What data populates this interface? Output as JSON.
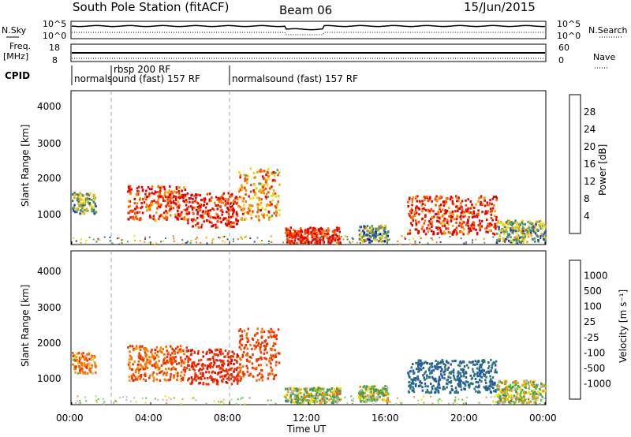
{
  "header": {
    "station": "South Pole Station (fitACF)",
    "beam": "Beam 06",
    "date": "15/Jun/2015"
  },
  "top_panels": {
    "nsky_label": "N.Sky",
    "nsky_ticks": [
      "10^5",
      "10^0"
    ],
    "nsearch_label": "N.Search",
    "nsearch_ticks": [
      "10^5",
      "10^0"
    ],
    "freq_label": "Freq.",
    "freq_unit": "[MHz]",
    "freq_ticks": [
      "18",
      "8"
    ],
    "nave_label": "Nave",
    "nave_ticks": [
      "60",
      "0"
    ],
    "cpid_label": "CPID",
    "cpid_segments": [
      {
        "start_hour": 0.0,
        "label": "normalsound (fast) 157 RF"
      },
      {
        "start_hour": 2.0,
        "label": "rbsp 200 RF"
      },
      {
        "start_hour": 8.0,
        "label": "normalsound (fast) 157 RF"
      }
    ]
  },
  "power_panel": {
    "ylabel": "Slant Range [km]",
    "yticks": [
      "4000",
      "3000",
      "2000",
      "1000"
    ],
    "colorbar_label": "Power [dB]",
    "colorbar_ticks": [
      "28",
      "24",
      "20",
      "16",
      "12",
      "8",
      "4"
    ],
    "colorbar_colors": [
      "#0000ff",
      "#2d3ca8",
      "#3a7f7a",
      "#5da05a",
      "#e5dc1a",
      "#f5a500",
      "#ff7a00",
      "#ff4400",
      "#e60000"
    ]
  },
  "velocity_panel": {
    "ylabel": "Slant Range [km]",
    "yticks": [
      "4000",
      "3000",
      "2000",
      "1000"
    ],
    "colorbar_label": "Velocity [m s⁻¹]",
    "colorbar_ticks": [
      "1000",
      "500",
      "100",
      "25",
      "-25",
      "-100",
      "-500",
      "-1000"
    ],
    "colorbar_colors": [
      "#1a2ec8",
      "#2458a0",
      "#2f7a78",
      "#4e9a4e",
      "#5ac838",
      "#bbbbbb",
      "#f0e000",
      "#f59a00",
      "#ff6a00",
      "#f03000",
      "#e00000"
    ]
  },
  "xaxis": {
    "label": "Time UT",
    "ticks": [
      "00:00",
      "04:00",
      "08:00",
      "12:00",
      "16:00",
      "20:00",
      "00:00"
    ]
  },
  "chart_data": [
    {
      "type": "heatmap",
      "title": "Power [dB]",
      "xlabel": "Time UT",
      "ylabel": "Slant Range [km]",
      "xlim_hours": [
        0,
        24
      ],
      "ylim": [
        180,
        4600
      ],
      "zlim": [
        0,
        30
      ],
      "blobs": [
        {
          "t0": 0.0,
          "t1": 1.2,
          "r0": 1100,
          "r1": 1700,
          "power": 12
        },
        {
          "t0": 2.8,
          "t1": 5.8,
          "r0": 900,
          "r1": 1900,
          "power": 26
        },
        {
          "t0": 5.8,
          "t1": 8.4,
          "r0": 700,
          "r1": 1700,
          "power": 28
        },
        {
          "t0": 8.4,
          "t1": 10.5,
          "r0": 900,
          "r1": 2400,
          "power": 20
        },
        {
          "t0": 10.8,
          "t1": 13.6,
          "r0": 250,
          "r1": 700,
          "power": 28
        },
        {
          "t0": 14.5,
          "t1": 16.0,
          "r0": 300,
          "r1": 750,
          "power": 10
        },
        {
          "t0": 17.0,
          "t1": 21.5,
          "r0": 500,
          "r1": 1600,
          "power": 26
        },
        {
          "t0": 21.5,
          "t1": 24.0,
          "r0": 250,
          "r1": 900,
          "power": 12
        }
      ]
    },
    {
      "type": "heatmap",
      "title": "Velocity [m s⁻¹]",
      "xlabel": "Time UT",
      "ylabel": "Slant Range [km]",
      "xlim_hours": [
        0,
        24
      ],
      "ylim": [
        180,
        4600
      ],
      "zlim": [
        -1000,
        1000
      ],
      "blobs": [
        {
          "t0": 0.0,
          "t1": 1.2,
          "r0": 1100,
          "r1": 1700,
          "velocity": -200
        },
        {
          "t0": 2.8,
          "t1": 5.8,
          "r0": 900,
          "r1": 1900,
          "velocity": -300
        },
        {
          "t0": 5.8,
          "t1": 8.4,
          "r0": 800,
          "r1": 1800,
          "velocity": -600
        },
        {
          "t0": 8.4,
          "t1": 10.5,
          "r0": 900,
          "r1": 2400,
          "velocity": -400
        },
        {
          "t0": 10.8,
          "t1": 13.6,
          "r0": 250,
          "r1": 700,
          "velocity": 60
        },
        {
          "t0": 14.5,
          "t1": 16.0,
          "r0": 300,
          "r1": 750,
          "velocity": 60
        },
        {
          "t0": 17.0,
          "t1": 21.5,
          "r0": 550,
          "r1": 1500,
          "velocity": 700
        },
        {
          "t0": 21.5,
          "t1": 24.0,
          "r0": 250,
          "r1": 900,
          "velocity": 80
        }
      ]
    }
  ]
}
